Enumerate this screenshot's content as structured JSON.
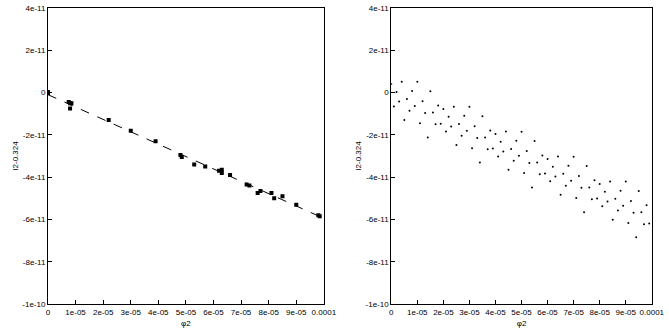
{
  "chart_data": [
    {
      "type": "scatter",
      "x_label": "φ2",
      "y_label": "I2-0.324",
      "xlim": [
        0,
        0.0001
      ],
      "ylim": [
        -1e-10,
        4e-11
      ],
      "xticks": [
        0,
        {
          "value": 1e-05,
          "label": "1e-05"
        },
        {
          "value": 2e-05,
          "label": "2e-05"
        },
        {
          "value": 3e-05,
          "label": "3e-05"
        },
        {
          "value": 4e-05,
          "label": "4e-05"
        },
        {
          "value": 5e-05,
          "label": "5e-05"
        },
        {
          "value": 6e-05,
          "label": "6e-05"
        },
        {
          "value": 7e-05,
          "label": "7e-05"
        },
        {
          "value": 8e-05,
          "label": "8e-05"
        },
        {
          "value": 9e-05,
          "label": "9e-05"
        },
        0.0001
      ],
      "yticks": [
        {
          "value": -1e-10,
          "label": "-1e-10"
        },
        {
          "value": -8e-11,
          "label": "-8e-11"
        },
        {
          "value": -6e-11,
          "label": "-6e-11"
        },
        {
          "value": -4e-11,
          "label": "-4e-11"
        },
        {
          "value": -2e-11,
          "label": "-2e-11"
        },
        0,
        {
          "value": 2e-11,
          "label": "2e-11"
        },
        {
          "value": 4e-11,
          "label": "4e-11"
        }
      ],
      "grid": false,
      "series": [
        {
          "type": "scatter",
          "marker": "square",
          "color": "#000000",
          "x": [
            0,
            0,
            0,
            7.5e-06,
            8e-06,
            8.5e-06,
            8e-06,
            2.2e-05,
            3e-05,
            3.9e-05,
            4.8e-05,
            4.85e-05,
            5.3e-05,
            5.7e-05,
            6.2e-05,
            6.3e-05,
            6.3e-05,
            6.6e-05,
            7.2e-05,
            7.3e-05,
            7.7e-05,
            7.6e-05,
            8.1e-05,
            8.2e-05,
            8.5e-05,
            9e-05,
            9.8e-05,
            9.85e-05
          ],
          "values": [
            0,
            3e-13,
            -2e-13,
            -4.5e-12,
            -5e-12,
            -5e-12,
            -7.5e-12,
            -1.3e-11,
            -1.8e-11,
            -2.3e-11,
            -2.95e-11,
            -3.05e-11,
            -3.4e-11,
            -3.5e-11,
            -3.7e-11,
            -3.65e-11,
            -3.8e-11,
            -3.9e-11,
            -4.35e-11,
            -4.4e-11,
            -4.65e-11,
            -4.75e-11,
            -4.75e-11,
            -5e-11,
            -4.9e-11,
            -5.3e-11,
            -5.8e-11,
            -5.85e-11
          ]
        },
        {
          "type": "line",
          "line_style": "dashed",
          "color": "#000000",
          "x": [
            0,
            0.0001
          ],
          "values": [
            -1e-12,
            -5.95e-11
          ]
        }
      ]
    },
    {
      "type": "scatter",
      "x_label": "φ2",
      "y_label": "I2-0.324",
      "xlim": [
        0,
        0.0001
      ],
      "ylim": [
        -1e-10,
        4e-11
      ],
      "xticks": [
        0,
        {
          "value": 1e-05,
          "label": "1e-05"
        },
        {
          "value": 2e-05,
          "label": "2e-05"
        },
        {
          "value": 3e-05,
          "label": "3e-05"
        },
        {
          "value": 4e-05,
          "label": "4e-05"
        },
        {
          "value": 5e-05,
          "label": "5e-05"
        },
        {
          "value": 6e-05,
          "label": "6e-05"
        },
        {
          "value": 7e-05,
          "label": "7e-05"
        },
        {
          "value": 8e-05,
          "label": "8e-05"
        },
        {
          "value": 9e-05,
          "label": "9e-05"
        },
        0.0001
      ],
      "yticks": [
        {
          "value": -1e-10,
          "label": "-1e-10"
        },
        {
          "value": -8e-11,
          "label": "-8e-11"
        },
        {
          "value": -6e-11,
          "label": "-6e-11"
        },
        {
          "value": -4e-11,
          "label": "-4e-11"
        },
        {
          "value": -2e-11,
          "label": "-2e-11"
        },
        0,
        {
          "value": 2e-11,
          "label": "2e-11"
        },
        {
          "value": 4e-11,
          "label": "4e-11"
        }
      ],
      "grid": false,
      "series": [
        {
          "type": "scatter",
          "marker": "dot",
          "color": "#000000",
          "x": [
            0.0,
            1e-06,
            2e-06,
            3e-06,
            4e-06,
            5e-06,
            6e-06,
            7e-06,
            8e-06,
            9e-06,
            1e-05,
            1.1e-05,
            1.2e-05,
            1.3e-05,
            1.4e-05,
            1.5e-05,
            1.6e-05,
            1.7e-05,
            1.8e-05,
            1.9e-05,
            2e-05,
            2.1e-05,
            2.2e-05,
            2.3e-05,
            2.4e-05,
            2.5e-05,
            2.6e-05,
            2.7e-05,
            2.8e-05,
            2.9e-05,
            3e-05,
            3.1e-05,
            3.2e-05,
            3.3e-05,
            3.4e-05,
            3.5e-05,
            3.6e-05,
            3.7e-05,
            3.8e-05,
            3.9e-05,
            4e-05,
            4.1e-05,
            4.2e-05,
            4.3e-05,
            4.4e-05,
            4.5e-05,
            4.6e-05,
            4.7e-05,
            4.8e-05,
            4.9e-05,
            5e-05,
            5.1e-05,
            5.2e-05,
            5.3e-05,
            5.4e-05,
            5.5e-05,
            5.6e-05,
            5.7e-05,
            5.8e-05,
            5.9e-05,
            6e-05,
            6.1e-05,
            6.2e-05,
            6.3e-05,
            6.4e-05,
            6.5e-05,
            6.6e-05,
            6.7e-05,
            6.8e-05,
            6.9e-05,
            7e-05,
            7.1e-05,
            7.2e-05,
            7.3e-05,
            7.4e-05,
            7.5e-05,
            7.6e-05,
            7.7e-05,
            7.8e-05,
            7.9e-05,
            8e-05,
            8.1e-05,
            8.2e-05,
            8.3e-05,
            8.4e-05,
            8.5e-05,
            8.6e-05,
            8.7e-05,
            8.8e-05,
            8.9e-05,
            9e-05,
            9.1e-05,
            9.2e-05,
            9.3e-05,
            9.4e-05,
            9.5e-05,
            9.6e-05,
            9.7e-05,
            9.8e-05,
            9.9e-05
          ],
          "values": [
            4e-12,
            -6.59e-12,
            3.2e-13,
            -4.27e-12,
            5.14e-12,
            -1.295e-11,
            -3.04e-12,
            -8.63e-12,
            7.8e-13,
            -6.31e-12,
            5.1e-12,
            -1.449e-11,
            -4.08e-12,
            -9.67e-12,
            -2.126e-11,
            6.5e-13,
            -9.44e-12,
            -1.503e-11,
            -6.12e-12,
            -1.471e-11,
            -7.8e-12,
            -1.839e-11,
            -1.148e-11,
            -1.607e-11,
            -6.66e-12,
            -2.475e-11,
            -1.484e-11,
            -2.043e-11,
            -1.102e-11,
            -1.811e-11,
            -6.7e-12,
            -2.629e-11,
            -1.588e-11,
            -2.147e-11,
            -3.306e-11,
            -1.115e-11,
            -2.124e-11,
            -2.683e-11,
            -1.792e-11,
            -2.651e-11,
            -1.96e-11,
            -3.019e-11,
            -2.328e-11,
            -2.787e-11,
            -1.846e-11,
            -3.655e-11,
            -2.664e-11,
            -3.223e-11,
            -2.282e-11,
            -2.991e-11,
            -1.85e-11,
            -3.809e-11,
            -2.768e-11,
            -3.327e-11,
            -4.486e-11,
            -2.295e-11,
            -3.304e-11,
            -3.863e-11,
            -2.972e-11,
            -3.831e-11,
            -3.14e-11,
            -4.199e-11,
            -3.508e-11,
            -3.967e-11,
            -3.026e-11,
            -4.835e-11,
            -3.844e-11,
            -4.403e-11,
            -3.462e-11,
            -4.171e-11,
            -3.03e-11,
            -4.989e-11,
            -3.948e-11,
            -4.507e-11,
            -5.666e-11,
            -3.475e-11,
            -4.484e-11,
            -5.043e-11,
            -4.152e-11,
            -5.011e-11,
            -4.32e-11,
            -5.379e-11,
            -4.688e-11,
            -5.147e-11,
            -4.206e-11,
            -6.015e-11,
            -5.024e-11,
            -5.583e-11,
            -4.642e-11,
            -5.351e-11,
            -4.21e-11,
            -6.169e-11,
            -5.128e-11,
            -5.687e-11,
            -6.846e-11,
            -4.655e-11,
            -5.664e-11,
            -6.223e-11,
            -5.332e-11,
            -6.191e-11
          ]
        }
      ]
    }
  ]
}
